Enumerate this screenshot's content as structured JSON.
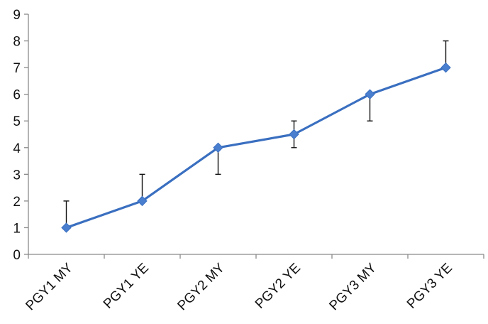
{
  "chart_data": {
    "type": "line",
    "title": "",
    "xlabel": "",
    "ylabel": "",
    "categories": [
      "PGY1 MY",
      "PGY1 YE",
      "PGY2 MY",
      "PGY2 YE",
      "PGY3 MY",
      "PGY3 YE"
    ],
    "series": [
      {
        "values": [
          1,
          2,
          4,
          4.5,
          6,
          7
        ],
        "error_upper": [
          2,
          3,
          4,
          5,
          6,
          8
        ],
        "error_lower": [
          1,
          2,
          3,
          4,
          5,
          7
        ]
      }
    ],
    "ylim": [
      0,
      9
    ],
    "yticks": [
      0,
      1,
      2,
      3,
      4,
      5,
      6,
      7,
      8,
      9
    ],
    "grid": false,
    "legend": "none",
    "line_color": "#3a6fc0",
    "marker_color": "#4a7fd0",
    "error_bar_color": "#111111",
    "marker": "diamond"
  }
}
